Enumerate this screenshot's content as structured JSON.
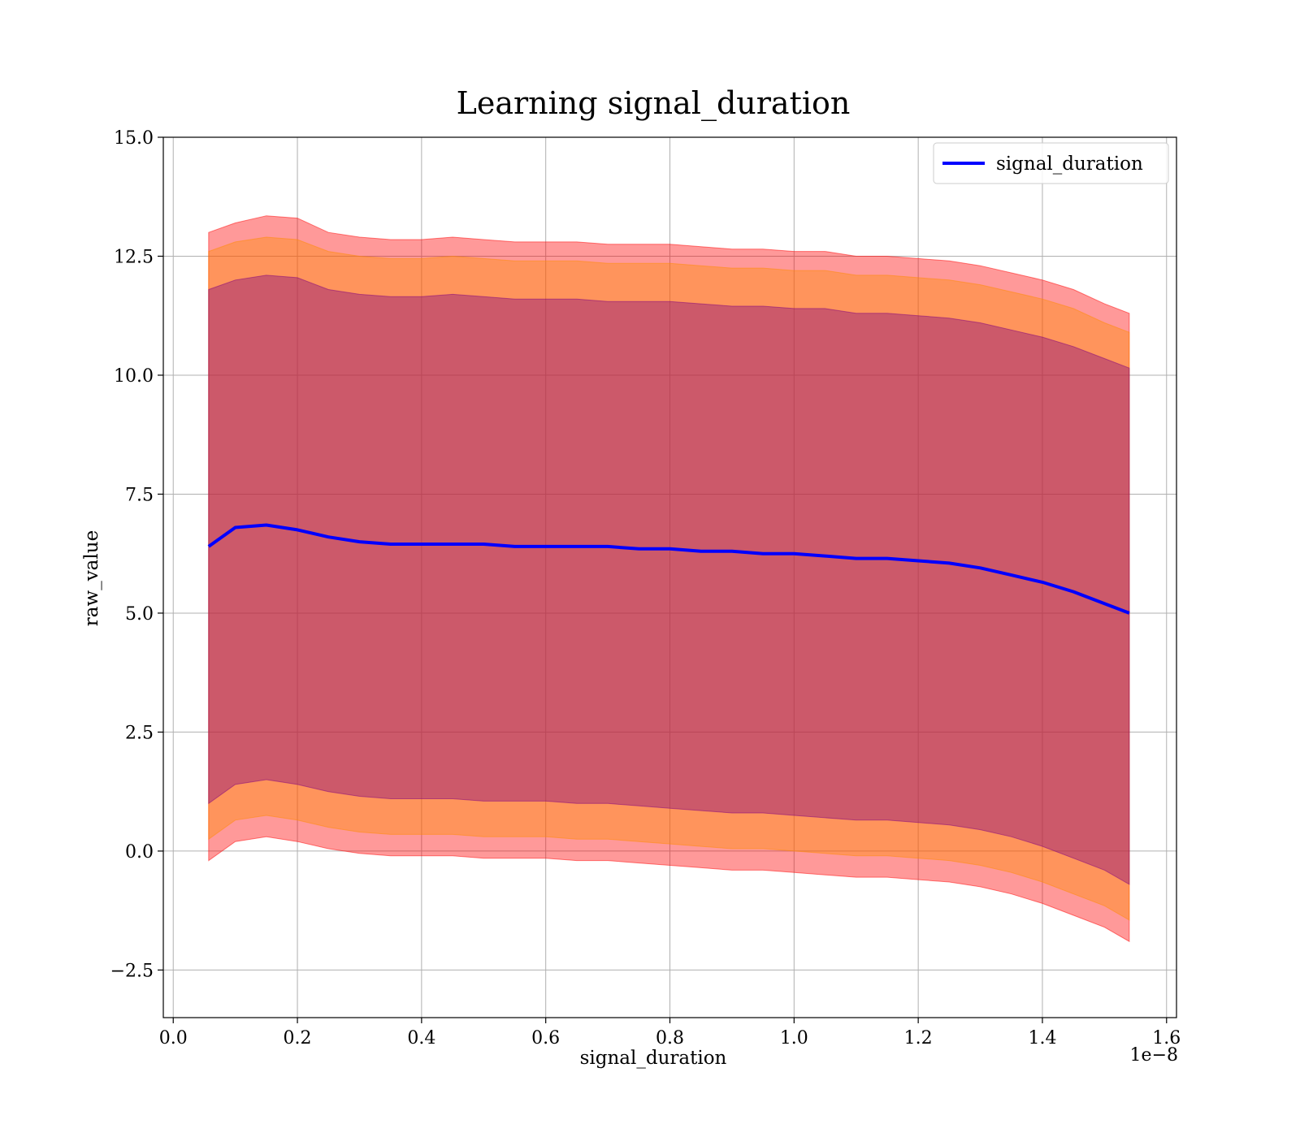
{
  "chart_data": {
    "type": "line",
    "title": "Learning signal_duration",
    "xlabel": "signal_duration",
    "ylabel": "raw_value",
    "x_offset_label": "1e−8",
    "xlim": [
      -0.016,
      1.616
    ],
    "ylim": [
      -3.5,
      15.0
    ],
    "x_ticks": [
      0.0,
      0.2,
      0.4,
      0.6,
      0.8,
      1.0,
      1.2,
      1.4,
      1.6
    ],
    "x_tick_labels": [
      "0.0",
      "0.2",
      "0.4",
      "0.6",
      "0.8",
      "1.0",
      "1.2",
      "1.4",
      "1.6"
    ],
    "y_ticks": [
      -2.5,
      0.0,
      2.5,
      5.0,
      7.5,
      10.0,
      12.5,
      15.0
    ],
    "y_tick_labels": [
      "−2.5",
      "0.0",
      "2.5",
      "5.0",
      "7.5",
      "10.0",
      "12.5",
      "15.0"
    ],
    "grid": true,
    "legend_position": "top-right",
    "series": [
      {
        "name": "signal_duration",
        "color": "#0000ff",
        "x": [
          0.057,
          0.1,
          0.15,
          0.2,
          0.25,
          0.3,
          0.35,
          0.4,
          0.45,
          0.5,
          0.55,
          0.6,
          0.65,
          0.7,
          0.75,
          0.8,
          0.85,
          0.9,
          0.95,
          1.0,
          1.05,
          1.1,
          1.15,
          1.2,
          1.25,
          1.3,
          1.35,
          1.4,
          1.45,
          1.5,
          1.54
        ],
        "values": [
          6.4,
          6.8,
          6.85,
          6.75,
          6.6,
          6.5,
          6.45,
          6.45,
          6.45,
          6.45,
          6.4,
          6.4,
          6.4,
          6.4,
          6.35,
          6.35,
          6.3,
          6.3,
          6.25,
          6.25,
          6.2,
          6.15,
          6.15,
          6.1,
          6.05,
          5.95,
          5.8,
          5.65,
          5.45,
          5.2,
          5.0
        ]
      }
    ],
    "bands": [
      {
        "color": "#ff0000",
        "opacity": 0.4,
        "x": [
          0.057,
          0.1,
          0.15,
          0.2,
          0.25,
          0.3,
          0.35,
          0.4,
          0.45,
          0.5,
          0.55,
          0.6,
          0.65,
          0.7,
          0.75,
          0.8,
          0.85,
          0.9,
          0.95,
          1.0,
          1.05,
          1.1,
          1.15,
          1.2,
          1.25,
          1.3,
          1.35,
          1.4,
          1.45,
          1.5,
          1.54
        ],
        "upper": [
          13.0,
          13.2,
          13.35,
          13.3,
          13.0,
          12.9,
          12.85,
          12.85,
          12.9,
          12.85,
          12.8,
          12.8,
          12.8,
          12.75,
          12.75,
          12.75,
          12.7,
          12.65,
          12.65,
          12.6,
          12.6,
          12.5,
          12.5,
          12.45,
          12.4,
          12.3,
          12.15,
          12.0,
          11.8,
          11.5,
          11.3
        ],
        "lower": [
          -0.2,
          0.2,
          0.3,
          0.2,
          0.05,
          -0.05,
          -0.1,
          -0.1,
          -0.1,
          -0.15,
          -0.15,
          -0.15,
          -0.2,
          -0.2,
          -0.25,
          -0.3,
          -0.35,
          -0.4,
          -0.4,
          -0.45,
          -0.5,
          -0.55,
          -0.55,
          -0.6,
          -0.65,
          -0.75,
          -0.9,
          -1.1,
          -1.35,
          -1.6,
          -1.9
        ]
      },
      {
        "color": "#ff8c00",
        "opacity": 0.4,
        "x": [
          0.057,
          0.1,
          0.15,
          0.2,
          0.25,
          0.3,
          0.35,
          0.4,
          0.45,
          0.5,
          0.55,
          0.6,
          0.65,
          0.7,
          0.75,
          0.8,
          0.85,
          0.9,
          0.95,
          1.0,
          1.05,
          1.1,
          1.15,
          1.2,
          1.25,
          1.3,
          1.35,
          1.4,
          1.45,
          1.5,
          1.54
        ],
        "upper": [
          12.6,
          12.8,
          12.9,
          12.85,
          12.6,
          12.5,
          12.45,
          12.45,
          12.5,
          12.45,
          12.4,
          12.4,
          12.4,
          12.35,
          12.35,
          12.35,
          12.3,
          12.25,
          12.25,
          12.2,
          12.2,
          12.1,
          12.1,
          12.05,
          12.0,
          11.9,
          11.75,
          11.6,
          11.4,
          11.1,
          10.9
        ],
        "lower": [
          0.25,
          0.65,
          0.75,
          0.65,
          0.5,
          0.4,
          0.35,
          0.35,
          0.35,
          0.3,
          0.3,
          0.3,
          0.25,
          0.25,
          0.2,
          0.15,
          0.1,
          0.05,
          0.05,
          0.0,
          -0.05,
          -0.1,
          -0.1,
          -0.15,
          -0.2,
          -0.3,
          -0.45,
          -0.65,
          -0.9,
          -1.15,
          -1.45
        ]
      },
      {
        "color": "#800080",
        "opacity": 0.4,
        "x": [
          0.057,
          0.1,
          0.15,
          0.2,
          0.25,
          0.3,
          0.35,
          0.4,
          0.45,
          0.5,
          0.55,
          0.6,
          0.65,
          0.7,
          0.75,
          0.8,
          0.85,
          0.9,
          0.95,
          1.0,
          1.05,
          1.1,
          1.15,
          1.2,
          1.25,
          1.3,
          1.35,
          1.4,
          1.45,
          1.5,
          1.54
        ],
        "upper": [
          11.8,
          12.0,
          12.1,
          12.05,
          11.8,
          11.7,
          11.65,
          11.65,
          11.7,
          11.65,
          11.6,
          11.6,
          11.6,
          11.55,
          11.55,
          11.55,
          11.5,
          11.45,
          11.45,
          11.4,
          11.4,
          11.3,
          11.3,
          11.25,
          11.2,
          11.1,
          10.95,
          10.8,
          10.6,
          10.35,
          10.15
        ],
        "lower": [
          1.0,
          1.4,
          1.5,
          1.4,
          1.25,
          1.15,
          1.1,
          1.1,
          1.1,
          1.05,
          1.05,
          1.05,
          1.0,
          1.0,
          0.95,
          0.9,
          0.85,
          0.8,
          0.8,
          0.75,
          0.7,
          0.65,
          0.65,
          0.6,
          0.55,
          0.45,
          0.3,
          0.1,
          -0.15,
          -0.4,
          -0.7
        ]
      }
    ]
  }
}
